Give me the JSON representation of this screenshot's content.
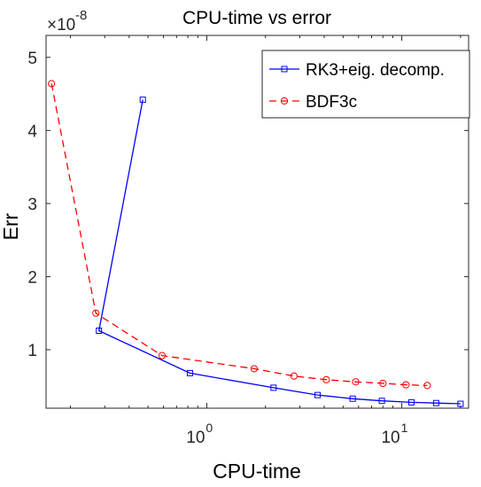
{
  "chart_data": {
    "type": "line",
    "title": "CPU-time vs error",
    "xlabel": "CPU-time",
    "ylabel": "Err",
    "xscale": "log",
    "xlim": [
      0.15,
      22
    ],
    "ylim": [
      0.2,
      5.3
    ],
    "y_exponent_label": "×10",
    "y_exponent_power": "-8",
    "x_ticks": [
      {
        "value": 1,
        "base": "10",
        "power": "0"
      },
      {
        "value": 10,
        "base": "10",
        "power": "1"
      }
    ],
    "y_ticks": [
      1,
      2,
      3,
      4,
      5
    ],
    "grid": false,
    "legend_position": "top-right",
    "series": [
      {
        "name": "RK3+eig. decomp.",
        "color": "#0000ff",
        "line_style": "solid",
        "marker": "square",
        "x": [
          0.47,
          0.28,
          0.82,
          2.2,
          3.7,
          5.6,
          7.9,
          11.2,
          15.0,
          20.0
        ],
        "y": [
          4.42,
          1.26,
          0.68,
          0.48,
          0.38,
          0.33,
          0.3,
          0.28,
          0.27,
          0.26
        ]
      },
      {
        "name": "BDF3c",
        "color": "#ff0000",
        "line_style": "dashed",
        "marker": "circle",
        "x": [
          0.16,
          0.27,
          0.59,
          1.75,
          2.8,
          4.1,
          5.8,
          8.0,
          10.5,
          13.5
        ],
        "y": [
          4.64,
          1.5,
          0.92,
          0.74,
          0.64,
          0.59,
          0.56,
          0.54,
          0.52,
          0.51
        ]
      }
    ]
  }
}
